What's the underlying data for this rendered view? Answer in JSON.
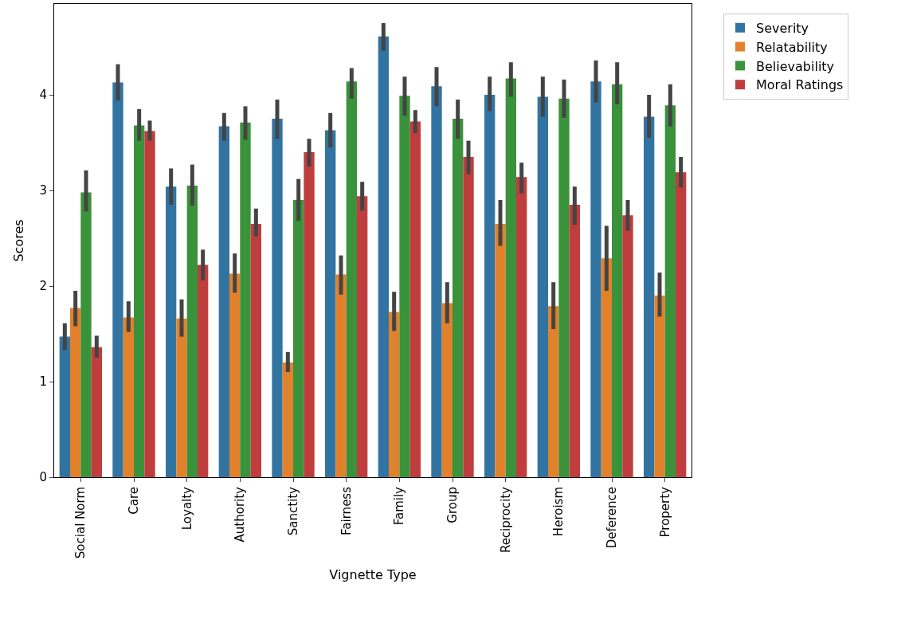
{
  "chart_data": {
    "type": "bar",
    "xlabel": "Vignette Type",
    "ylabel": "Scores",
    "categories": [
      "Social Norm",
      "Care",
      "Loyalty",
      "Authority",
      "Sanctity",
      "Fairness",
      "Family",
      "Group",
      "Reciprocity",
      "Heroism",
      "Deference",
      "Property"
    ],
    "series": [
      {
        "name": "Severity",
        "color": "#3274a1",
        "values": [
          1.47,
          4.13,
          3.04,
          3.67,
          3.75,
          3.63,
          4.61,
          4.09,
          4.0,
          3.98,
          4.14,
          3.77
        ],
        "errors": [
          [
            1.33,
            1.61
          ],
          [
            3.94,
            4.32
          ],
          [
            2.85,
            3.23
          ],
          [
            3.52,
            3.81
          ],
          [
            3.54,
            3.95
          ],
          [
            3.45,
            3.81
          ],
          [
            4.46,
            4.75
          ],
          [
            3.88,
            4.29
          ],
          [
            3.83,
            4.19
          ],
          [
            3.77,
            4.19
          ],
          [
            3.92,
            4.36
          ],
          [
            3.55,
            4.0
          ]
        ]
      },
      {
        "name": "Relatability",
        "color": "#e1812c",
        "values": [
          1.77,
          1.67,
          1.66,
          2.13,
          1.2,
          2.12,
          1.73,
          1.82,
          2.65,
          1.79,
          2.29,
          1.9
        ],
        "errors": [
          [
            1.58,
            1.95
          ],
          [
            1.52,
            1.84
          ],
          [
            1.47,
            1.86
          ],
          [
            1.93,
            2.34
          ],
          [
            1.1,
            1.31
          ],
          [
            1.91,
            2.32
          ],
          [
            1.53,
            1.94
          ],
          [
            1.61,
            2.04
          ],
          [
            2.42,
            2.9
          ],
          [
            1.55,
            2.04
          ],
          [
            1.95,
            2.63
          ],
          [
            1.68,
            2.14
          ]
        ]
      },
      {
        "name": "Believability",
        "color": "#3a923a",
        "values": [
          2.98,
          3.68,
          3.05,
          3.71,
          2.9,
          4.14,
          3.99,
          3.75,
          4.17,
          3.96,
          4.11,
          3.89
        ],
        "errors": [
          [
            2.78,
            3.21
          ],
          [
            3.52,
            3.85
          ],
          [
            2.84,
            3.27
          ],
          [
            3.53,
            3.88
          ],
          [
            2.68,
            3.12
          ],
          [
            3.96,
            4.28
          ],
          [
            3.78,
            4.19
          ],
          [
            3.54,
            3.95
          ],
          [
            3.98,
            4.34
          ],
          [
            3.76,
            4.16
          ],
          [
            3.9,
            4.34
          ],
          [
            3.67,
            4.11
          ]
        ]
      },
      {
        "name": "Moral Ratings",
        "color": "#c03d3e",
        "values": [
          1.36,
          3.62,
          2.22,
          2.65,
          3.4,
          2.94,
          3.72,
          3.35,
          3.14,
          2.85,
          2.74,
          3.19
        ],
        "errors": [
          [
            1.25,
            1.48
          ],
          [
            3.52,
            3.73
          ],
          [
            2.06,
            2.38
          ],
          [
            2.52,
            2.81
          ],
          [
            3.25,
            3.54
          ],
          [
            2.79,
            3.09
          ],
          [
            3.6,
            3.84
          ],
          [
            3.17,
            3.52
          ],
          [
            2.97,
            3.29
          ],
          [
            2.64,
            3.04
          ],
          [
            2.58,
            2.9
          ],
          [
            3.03,
            3.35
          ]
        ]
      }
    ],
    "ylim": [
      0,
      4.95
    ],
    "yticks": [
      0,
      1,
      2,
      3,
      4
    ],
    "legend": "top right"
  }
}
